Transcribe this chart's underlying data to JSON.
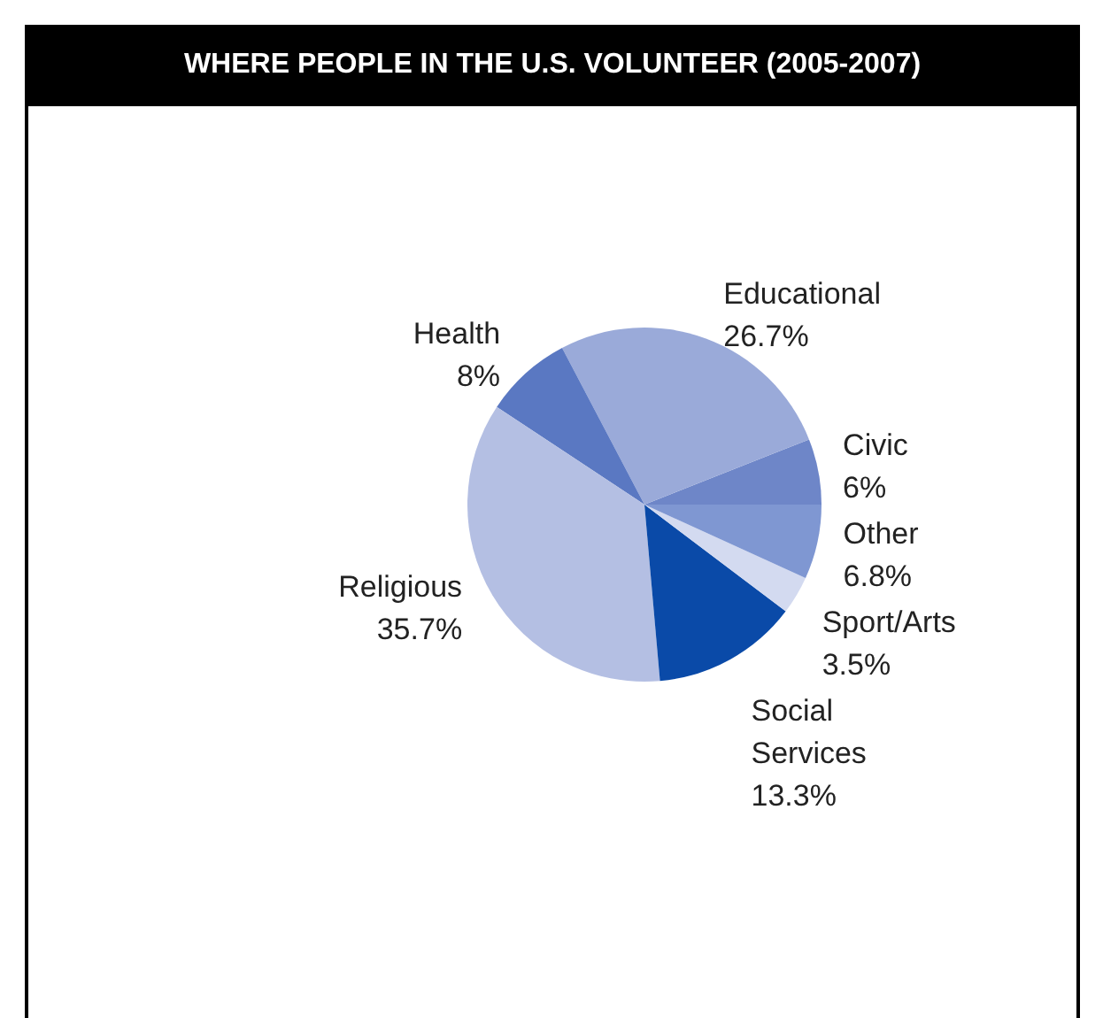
{
  "chart_data": {
    "type": "pie",
    "title": "WHERE PEOPLE IN THE U.S. VOLUNTEER (2005-2007)",
    "categories": [
      "Civic",
      "Educational",
      "Health",
      "Religious",
      "Social Services",
      "Sport/Arts",
      "Other"
    ],
    "values": [
      6,
      26.7,
      8,
      35.7,
      13.3,
      3.5,
      6.8
    ],
    "value_labels": [
      "6%",
      "26.7%",
      "8%",
      "35.7%",
      "13.3%",
      "3.5%",
      "6.8%"
    ],
    "colors": [
      "#6e86c8",
      "#9aaad9",
      "#5a78c2",
      "#b4bfe3",
      "#0a4aa8",
      "#d3daf0",
      "#7f97d2"
    ],
    "legend": false
  }
}
